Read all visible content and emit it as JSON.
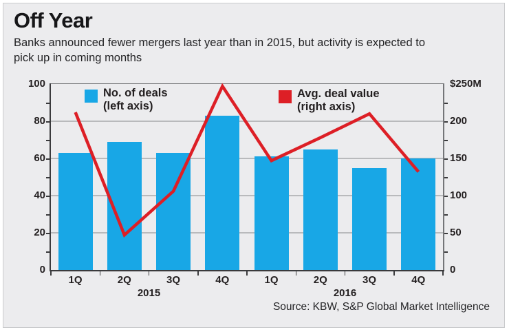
{
  "title": "Off Year",
  "subtitle": {
    "line1": "Banks announced fewer mergers last year than in 2015, but activity is expected to",
    "line2": "pick up in coming months"
  },
  "legend": {
    "deals": {
      "line1": "No. of deals",
      "line2": "(left axis)"
    },
    "value": {
      "line1": "Avg. deal value",
      "line2": "(right axis)"
    }
  },
  "source": "Source: KBW, S&P Global Market Intelligence",
  "colors": {
    "bar": "#18a7e6",
    "line": "#dd1f26"
  },
  "chart_data": {
    "type": "bar+line",
    "categories": [
      "1Q",
      "2Q",
      "3Q",
      "4Q",
      "1Q",
      "2Q",
      "3Q",
      "4Q"
    ],
    "year_groups": [
      {
        "label": "2015",
        "center_slot": 2
      },
      {
        "label": "2016",
        "center_slot": 6
      }
    ],
    "series": [
      {
        "name": "No. of deals",
        "type": "bar",
        "axis": "left",
        "values": [
          63,
          69,
          63,
          83,
          61,
          65,
          55,
          60
        ]
      },
      {
        "name": "Avg. deal value ($M)",
        "type": "line",
        "axis": "right",
        "values": [
          212,
          47,
          106,
          247,
          147,
          178,
          210,
          132
        ]
      }
    ],
    "left_axis": {
      "labels": [
        "100",
        "80",
        "60",
        "40",
        "20",
        "0"
      ],
      "values": [
        100,
        80,
        60,
        40,
        20,
        0
      ],
      "range": [
        0,
        100
      ],
      "minor_tick_step": 10
    },
    "right_axis": {
      "labels": [
        "$250M",
        "200",
        "150",
        "100",
        "50",
        "0"
      ],
      "values": [
        250,
        200,
        150,
        100,
        50,
        0
      ],
      "range": [
        0,
        250
      ],
      "minor_tick_step": 25
    },
    "grid_left_values": [
      20,
      40,
      60,
      80
    ],
    "legend_position": "top-inside",
    "grid": true
  }
}
